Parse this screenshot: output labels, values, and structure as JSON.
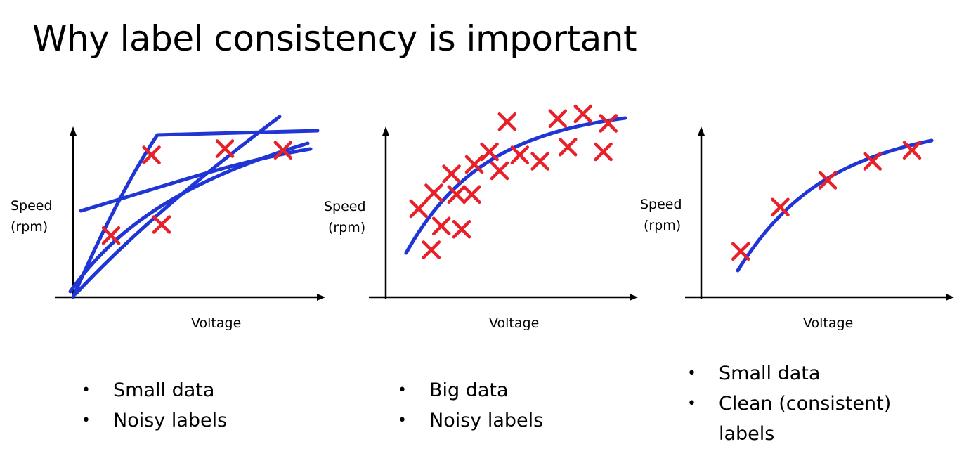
{
  "slide": {
    "title": "Why label consistency is important"
  },
  "colors": {
    "points": "#e8202a",
    "fit": "#1f35d6",
    "axis": "#000000"
  },
  "chart_data": [
    {
      "type": "scatter",
      "xlabel": "Voltage",
      "ylabel_lines": [
        "Speed",
        "(rpm)"
      ],
      "x": [
        1.5,
        3.1,
        3.5,
        6.0,
        8.3
      ],
      "y": [
        3.9,
        9.0,
        4.6,
        9.4,
        9.3
      ],
      "bullets": [
        "Small data",
        "Noisy labels"
      ]
    },
    {
      "type": "scatter",
      "xlabel": "Voltage",
      "ylabel_lines": [
        "Speed",
        "(rpm)"
      ],
      "x": [
        1.3,
        1.8,
        1.9,
        2.2,
        2.6,
        2.8,
        3.0,
        3.4,
        3.5,
        4.1,
        4.5,
        4.8,
        5.3,
        6.1,
        6.8,
        7.2,
        7.8,
        8.6,
        8.8
      ],
      "y": [
        5.6,
        3.0,
        6.6,
        4.5,
        7.8,
        6.5,
        4.3,
        6.5,
        8.4,
        9.2,
        8.0,
        11.1,
        9.0,
        8.6,
        11.3,
        9.5,
        11.6,
        9.2,
        11.0
      ],
      "bullets": [
        "Big data",
        "Noisy labels"
      ]
    },
    {
      "type": "scatter",
      "xlabel": "Voltage",
      "ylabel_lines": [
        "Speed",
        "(rpm)"
      ],
      "x": [
        1.5,
        3.0,
        4.8,
        6.5,
        8.0
      ],
      "y": [
        2.9,
        5.7,
        7.4,
        8.6,
        9.3
      ],
      "bullets": [
        "Small data",
        "Clean (consistent) labels"
      ]
    }
  ]
}
